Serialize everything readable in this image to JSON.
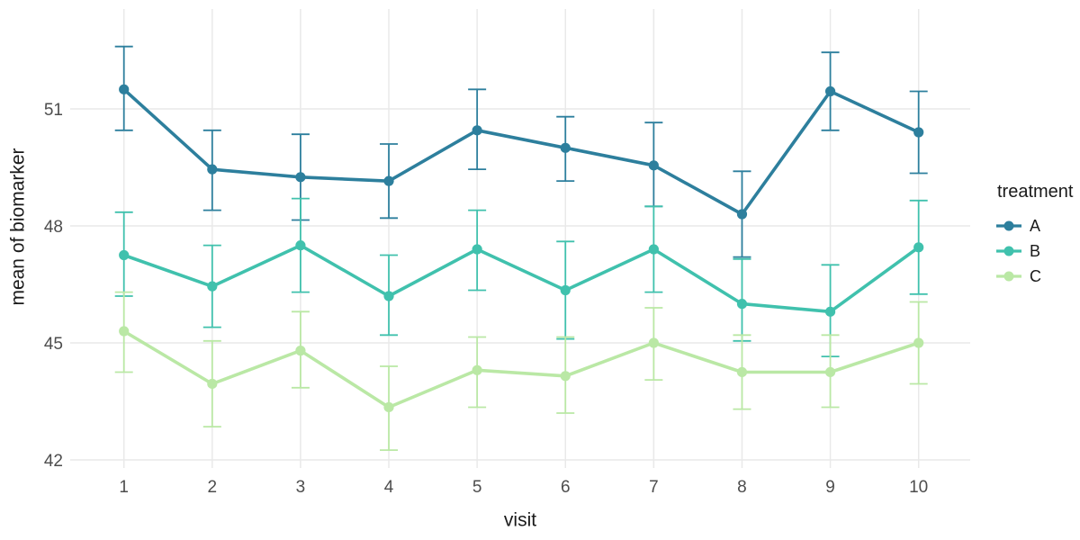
{
  "chart_data": {
    "type": "line",
    "title": "",
    "xlabel": "visit",
    "ylabel": "mean of biomarker",
    "legend_title": "treatment",
    "legend_position": "right",
    "background": "#ffffff",
    "grid": "major gridlines only, no axis lines, no tick marks (theme_minimal)",
    "grid_color": "#e9e9e9",
    "tick_label_color": "#4d4d4d",
    "error_bar_style": "vertical stem with flat caps, same color as series",
    "x": [
      1,
      2,
      3,
      4,
      5,
      6,
      7,
      8,
      9,
      10
    ],
    "xticks": [
      1,
      2,
      3,
      4,
      5,
      6,
      7,
      8,
      9,
      10
    ],
    "yticks": [
      42,
      45,
      48,
      51
    ],
    "ylim": [
      41.8,
      53.6
    ],
    "series": [
      {
        "name": "A",
        "color": "#2d7f9d",
        "values": [
          51.5,
          49.45,
          49.25,
          49.15,
          50.45,
          50.0,
          49.55,
          48.3,
          51.45,
          50.4
        ],
        "err_high": [
          52.6,
          50.45,
          50.35,
          50.1,
          51.5,
          50.8,
          50.65,
          49.4,
          52.45,
          51.45
        ],
        "err_low": [
          50.45,
          48.4,
          48.15,
          48.2,
          49.45,
          49.15,
          48.5,
          47.2,
          50.45,
          49.35
        ]
      },
      {
        "name": "B",
        "color": "#40c1ad",
        "values": [
          47.25,
          46.45,
          47.5,
          46.2,
          47.4,
          46.35,
          47.4,
          46.0,
          45.8,
          47.45
        ],
        "err_high": [
          48.35,
          47.5,
          48.7,
          47.25,
          48.4,
          47.6,
          48.5,
          47.15,
          47.0,
          48.65
        ],
        "err_low": [
          46.2,
          45.4,
          46.3,
          45.2,
          46.35,
          45.1,
          46.3,
          45.05,
          44.65,
          46.25
        ]
      },
      {
        "name": "C",
        "color": "#bae8a5",
        "values": [
          45.3,
          43.95,
          44.8,
          43.35,
          44.3,
          44.15,
          45.0,
          44.25,
          44.25,
          45.0
        ],
        "err_high": [
          46.3,
          45.05,
          45.8,
          44.4,
          45.15,
          45.15,
          45.9,
          45.2,
          45.2,
          46.05
        ],
        "err_low": [
          44.25,
          42.85,
          43.85,
          42.25,
          43.35,
          43.2,
          44.05,
          43.3,
          43.35,
          43.95
        ]
      }
    ]
  }
}
